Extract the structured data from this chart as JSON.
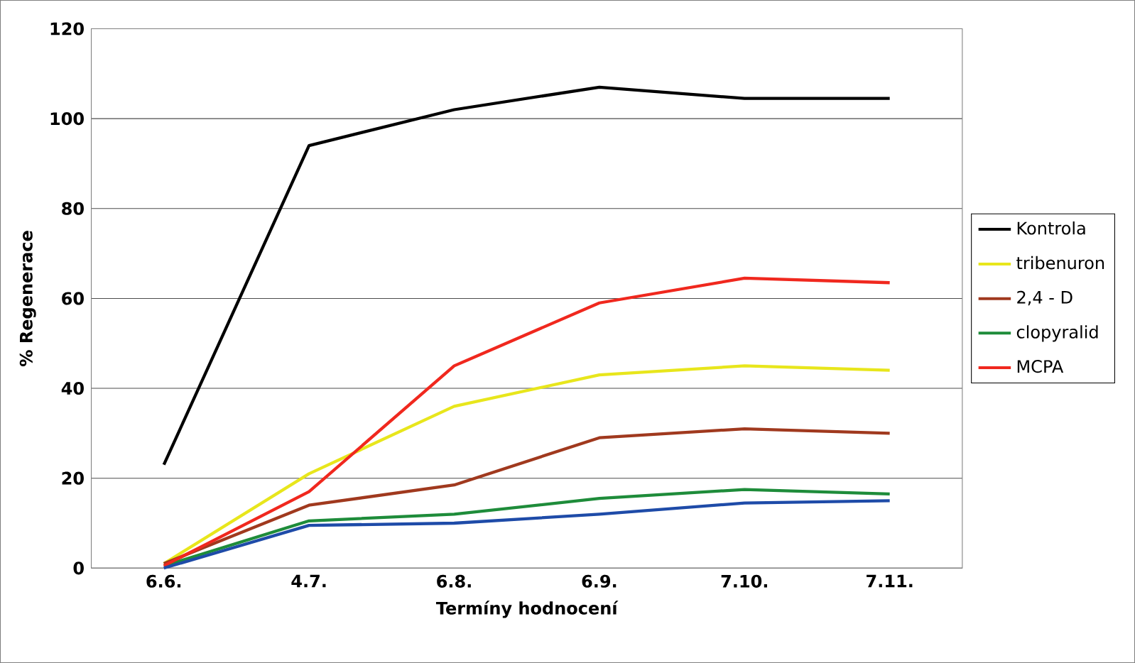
{
  "chart_data": {
    "type": "line",
    "xlabel": "Termíny hodnocení",
    "ylabel": "% Regenerace",
    "categories": [
      "6.6.",
      "4.7.",
      "6.8.",
      "6.9.",
      "7.10.",
      "7.11."
    ],
    "series": [
      {
        "name": "Kontrola",
        "color": "#000000",
        "values": [
          23,
          94,
          102,
          107,
          104.5,
          104.5
        ]
      },
      {
        "name": "tribenuron",
        "color": "#e8e61c",
        "values": [
          1,
          21,
          36,
          43,
          45,
          44
        ]
      },
      {
        "name": "2,4 - D",
        "color": "#a0391e",
        "values": [
          1,
          14,
          18.5,
          29,
          31,
          30
        ]
      },
      {
        "name": "clopyralid",
        "color": "#1e8c3a",
        "values": [
          0.5,
          10.5,
          12,
          15.5,
          17.5,
          16.5
        ]
      },
      {
        "name": "MCPA",
        "color": "#f0281e",
        "values": [
          0.5,
          17,
          45,
          59,
          64.5,
          63.5
        ]
      },
      {
        "color": "#1e4ba8",
        "values": [
          0,
          9.5,
          10,
          12,
          14.5,
          15
        ]
      }
    ],
    "ylim": [
      0,
      120
    ],
    "yticks": [
      0,
      20,
      40,
      60,
      80,
      100,
      120
    ],
    "grid": "y",
    "legend": "right",
    "marker": "none",
    "line_style": "solid"
  }
}
